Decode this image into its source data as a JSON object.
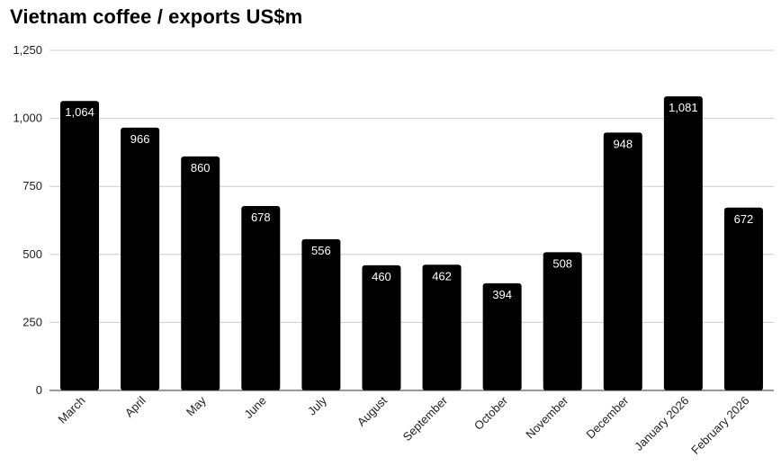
{
  "chart_data": {
    "type": "bar",
    "title": "Vietnam coffee / exports US$m",
    "categories": [
      "March",
      "April",
      "May",
      "June",
      "July",
      "August",
      "September",
      "October",
      "November",
      "December",
      "January 2026",
      "February 2026"
    ],
    "values": [
      1064,
      966,
      860,
      678,
      556,
      460,
      462,
      394,
      508,
      948,
      1081,
      672
    ],
    "value_labels": [
      "1,064",
      "966",
      "860",
      "678",
      "556",
      "460",
      "462",
      "394",
      "508",
      "948",
      "1,081",
      "672"
    ],
    "ylim": [
      0,
      1250
    ],
    "yticks": [
      0,
      250,
      500,
      750,
      1000,
      1250
    ],
    "ytick_labels": [
      "0",
      "250",
      "500",
      "750",
      "1,000",
      "1,250"
    ],
    "grid": true,
    "bar_color": "#000000",
    "grid_color": "#cccccc"
  }
}
